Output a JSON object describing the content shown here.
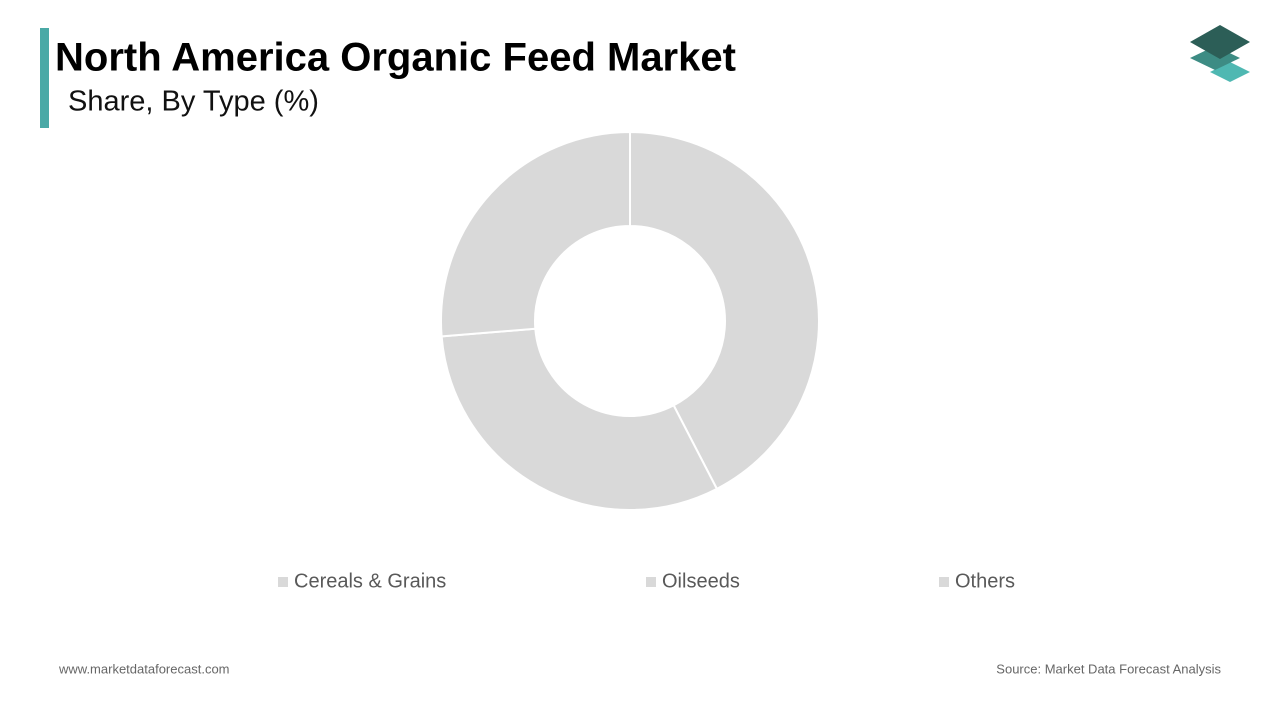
{
  "chart_data": {
    "type": "donut",
    "title": "North America Organic Feed Market",
    "subtitle": "Share, By Type (%)",
    "categories": [
      "Cereals & Grains",
      "Oilseeds",
      "Others"
    ],
    "values": [
      42.4,
      31.3,
      26.3
    ],
    "colors": [
      "#d9d9d9",
      "#d9d9d9",
      "#d9d9d9"
    ],
    "legend": "bottom",
    "footer_left": "www.marketdataforecast.com",
    "footer_right": "Source: Market Data Forecast Analysis"
  }
}
